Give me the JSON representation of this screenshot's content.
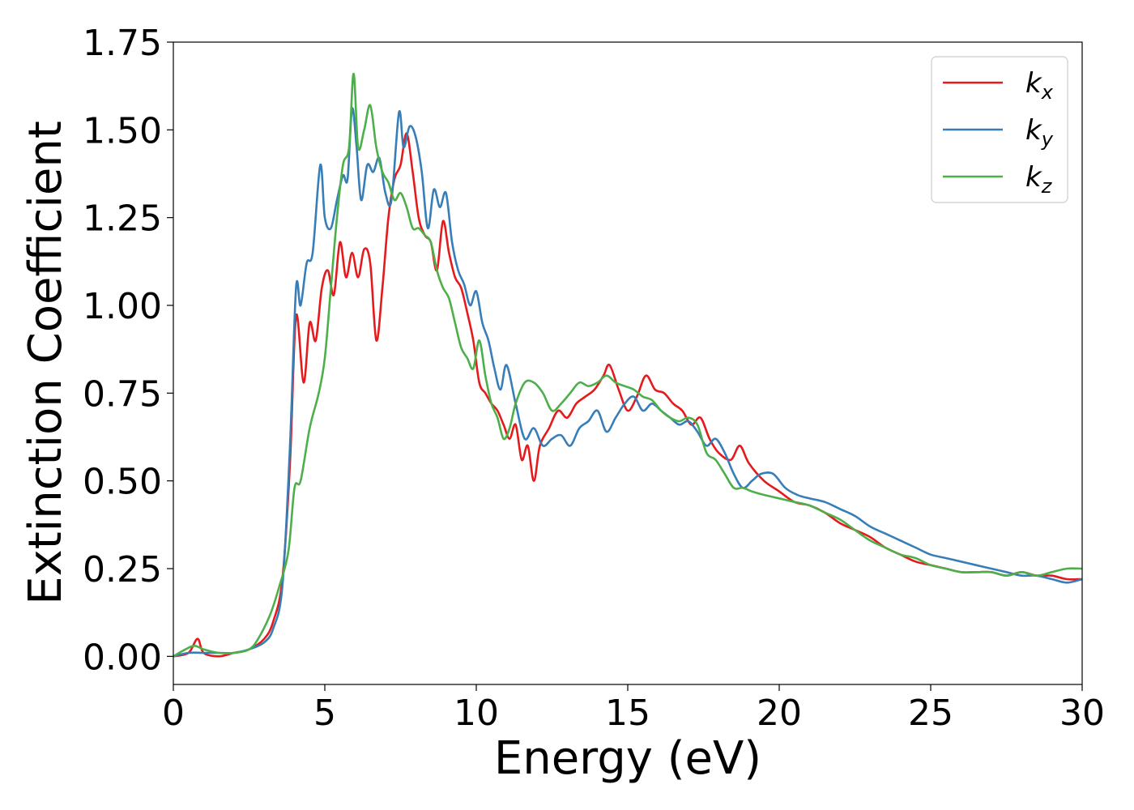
{
  "chart_data": {
    "type": "line",
    "title": "",
    "xlabel": "Energy (eV)",
    "ylabel": "Extinction Coefficient",
    "xlim": [
      0,
      30
    ],
    "ylim": [
      -0.08,
      1.75
    ],
    "x_ticks": [
      0,
      5,
      10,
      15,
      20,
      25,
      30
    ],
    "x_tick_labels": [
      "0",
      "5",
      "10",
      "15",
      "20",
      "25",
      "30"
    ],
    "y_ticks": [
      0,
      0.25,
      0.5,
      0.75,
      1.0,
      1.25,
      1.5,
      1.75
    ],
    "y_tick_labels": [
      "0.00",
      "0.25",
      "0.50",
      "0.75",
      "1.00",
      "1.25",
      "1.50",
      "1.75"
    ],
    "grid": false,
    "legend_position": "top-right",
    "series": [
      {
        "name": "k_x",
        "legend_main": "k",
        "legend_sub": "x",
        "color": "#e41a1c",
        "x": [
          0,
          0.5,
          0.8,
          1.0,
          1.5,
          2.0,
          2.5,
          3.0,
          3.3,
          3.6,
          3.85,
          4.05,
          4.3,
          4.5,
          4.7,
          4.9,
          5.1,
          5.3,
          5.5,
          5.7,
          5.9,
          6.1,
          6.3,
          6.5,
          6.7,
          6.9,
          7.1,
          7.3,
          7.5,
          7.7,
          7.9,
          8.1,
          8.3,
          8.5,
          8.7,
          8.9,
          9.1,
          9.3,
          9.5,
          9.7,
          9.9,
          10.1,
          10.3,
          10.5,
          10.7,
          10.9,
          11.1,
          11.3,
          11.5,
          11.7,
          11.9,
          12.1,
          12.4,
          12.7,
          13.0,
          13.3,
          13.6,
          13.9,
          14.2,
          14.4,
          14.7,
          15.0,
          15.3,
          15.6,
          15.9,
          16.2,
          16.5,
          16.8,
          17.1,
          17.4,
          17.7,
          18.0,
          18.4,
          18.7,
          19.0,
          19.5,
          20.0,
          20.5,
          21.0,
          21.5,
          22.0,
          22.5,
          23.0,
          23.5,
          24.0,
          24.5,
          25.0,
          25.5,
          26.0,
          26.5,
          27.0,
          27.5,
          28.0,
          28.5,
          29.0,
          29.5,
          30.0
        ],
        "y": [
          0.0,
          0.01,
          0.05,
          0.01,
          0.0,
          0.01,
          0.02,
          0.05,
          0.1,
          0.22,
          0.55,
          0.97,
          0.78,
          0.95,
          0.9,
          1.05,
          1.1,
          1.03,
          1.18,
          1.08,
          1.15,
          1.08,
          1.16,
          1.12,
          0.9,
          1.05,
          1.25,
          1.36,
          1.4,
          1.49,
          1.38,
          1.25,
          1.2,
          1.18,
          1.1,
          1.24,
          1.15,
          1.08,
          1.05,
          0.98,
          0.9,
          0.78,
          0.75,
          0.72,
          0.7,
          0.66,
          0.62,
          0.66,
          0.56,
          0.6,
          0.5,
          0.6,
          0.65,
          0.7,
          0.68,
          0.72,
          0.74,
          0.76,
          0.8,
          0.83,
          0.76,
          0.7,
          0.74,
          0.8,
          0.76,
          0.75,
          0.72,
          0.7,
          0.66,
          0.68,
          0.62,
          0.58,
          0.56,
          0.6,
          0.55,
          0.5,
          0.47,
          0.44,
          0.43,
          0.41,
          0.38,
          0.36,
          0.34,
          0.31,
          0.29,
          0.27,
          0.26,
          0.25,
          0.24,
          0.24,
          0.24,
          0.23,
          0.24,
          0.23,
          0.23,
          0.22,
          0.22
        ]
      },
      {
        "name": "k_y",
        "legend_main": "k",
        "legend_sub": "y",
        "color": "#377eb8",
        "x": [
          0,
          0.5,
          1.0,
          1.5,
          2.0,
          2.5,
          3.0,
          3.3,
          3.6,
          3.85,
          4.05,
          4.2,
          4.4,
          4.6,
          4.85,
          5.0,
          5.2,
          5.4,
          5.6,
          5.75,
          5.9,
          6.05,
          6.2,
          6.4,
          6.6,
          6.8,
          7.0,
          7.2,
          7.45,
          7.6,
          7.8,
          8.0,
          8.2,
          8.4,
          8.6,
          8.8,
          9.0,
          9.2,
          9.4,
          9.6,
          9.8,
          10.0,
          10.2,
          10.4,
          10.6,
          10.8,
          11.0,
          11.3,
          11.6,
          11.9,
          12.2,
          12.5,
          12.8,
          13.1,
          13.4,
          13.7,
          14.0,
          14.3,
          14.6,
          14.9,
          15.2,
          15.5,
          15.8,
          16.1,
          16.4,
          16.7,
          17.0,
          17.3,
          17.6,
          17.9,
          18.2,
          18.5,
          18.8,
          19.1,
          19.4,
          19.8,
          20.2,
          20.6,
          21.0,
          21.5,
          22.0,
          22.5,
          23.0,
          23.5,
          24.0,
          24.5,
          25.0,
          25.5,
          26.0,
          26.5,
          27.0,
          27.5,
          28.0,
          28.5,
          29.0,
          29.5,
          30.0
        ],
        "y": [
          0.0,
          0.01,
          0.01,
          0.01,
          0.01,
          0.02,
          0.04,
          0.08,
          0.2,
          0.6,
          1.05,
          1.0,
          1.12,
          1.15,
          1.4,
          1.25,
          1.22,
          1.3,
          1.37,
          1.36,
          1.56,
          1.45,
          1.3,
          1.4,
          1.38,
          1.42,
          1.32,
          1.3,
          1.55,
          1.45,
          1.51,
          1.48,
          1.38,
          1.22,
          1.33,
          1.28,
          1.32,
          1.18,
          1.1,
          1.06,
          1.0,
          1.04,
          0.95,
          0.9,
          0.82,
          0.76,
          0.83,
          0.72,
          0.62,
          0.65,
          0.6,
          0.62,
          0.63,
          0.6,
          0.65,
          0.67,
          0.7,
          0.64,
          0.68,
          0.72,
          0.74,
          0.7,
          0.72,
          0.7,
          0.68,
          0.66,
          0.67,
          0.64,
          0.6,
          0.62,
          0.58,
          0.52,
          0.48,
          0.5,
          0.52,
          0.52,
          0.48,
          0.46,
          0.45,
          0.44,
          0.42,
          0.4,
          0.37,
          0.35,
          0.33,
          0.31,
          0.29,
          0.28,
          0.27,
          0.26,
          0.25,
          0.24,
          0.23,
          0.23,
          0.22,
          0.21,
          0.22
        ]
      },
      {
        "name": "k_z",
        "legend_main": "k",
        "legend_sub": "z",
        "color": "#4daf4a",
        "x": [
          0,
          0.4,
          0.7,
          1.0,
          1.5,
          2.0,
          2.5,
          2.8,
          3.2,
          3.5,
          3.8,
          4.0,
          4.2,
          4.5,
          4.8,
          5.0,
          5.2,
          5.4,
          5.6,
          5.8,
          5.95,
          6.1,
          6.3,
          6.5,
          6.7,
          6.9,
          7.1,
          7.3,
          7.5,
          7.7,
          7.9,
          8.1,
          8.3,
          8.5,
          8.7,
          8.9,
          9.1,
          9.3,
          9.5,
          9.7,
          9.9,
          10.1,
          10.3,
          10.5,
          10.7,
          10.9,
          11.1,
          11.3,
          11.6,
          11.9,
          12.2,
          12.5,
          12.8,
          13.1,
          13.4,
          13.7,
          14.0,
          14.3,
          14.6,
          14.9,
          15.2,
          15.5,
          15.8,
          16.1,
          16.4,
          16.7,
          17.0,
          17.3,
          17.6,
          17.9,
          18.2,
          18.5,
          18.8,
          19.1,
          19.5,
          20.0,
          20.5,
          21.0,
          21.5,
          22.0,
          22.5,
          23.0,
          23.5,
          24.0,
          24.5,
          25.0,
          25.5,
          26.0,
          26.5,
          27.0,
          27.5,
          28.0,
          28.5,
          29.0,
          29.5,
          30.0
        ],
        "y": [
          0.0,
          0.02,
          0.03,
          0.02,
          0.01,
          0.01,
          0.02,
          0.05,
          0.12,
          0.2,
          0.3,
          0.48,
          0.5,
          0.65,
          0.75,
          0.85,
          1.05,
          1.25,
          1.4,
          1.45,
          1.66,
          1.45,
          1.5,
          1.57,
          1.45,
          1.38,
          1.35,
          1.3,
          1.32,
          1.28,
          1.22,
          1.22,
          1.2,
          1.18,
          1.1,
          1.05,
          1.02,
          0.95,
          0.88,
          0.85,
          0.82,
          0.9,
          0.8,
          0.72,
          0.68,
          0.62,
          0.65,
          0.72,
          0.78,
          0.78,
          0.75,
          0.7,
          0.72,
          0.75,
          0.78,
          0.77,
          0.78,
          0.8,
          0.78,
          0.77,
          0.76,
          0.74,
          0.73,
          0.7,
          0.68,
          0.67,
          0.68,
          0.66,
          0.58,
          0.56,
          0.52,
          0.48,
          0.48,
          0.47,
          0.46,
          0.45,
          0.44,
          0.43,
          0.41,
          0.39,
          0.36,
          0.33,
          0.31,
          0.29,
          0.28,
          0.26,
          0.25,
          0.24,
          0.24,
          0.24,
          0.23,
          0.24,
          0.23,
          0.24,
          0.25,
          0.25
        ]
      }
    ]
  }
}
